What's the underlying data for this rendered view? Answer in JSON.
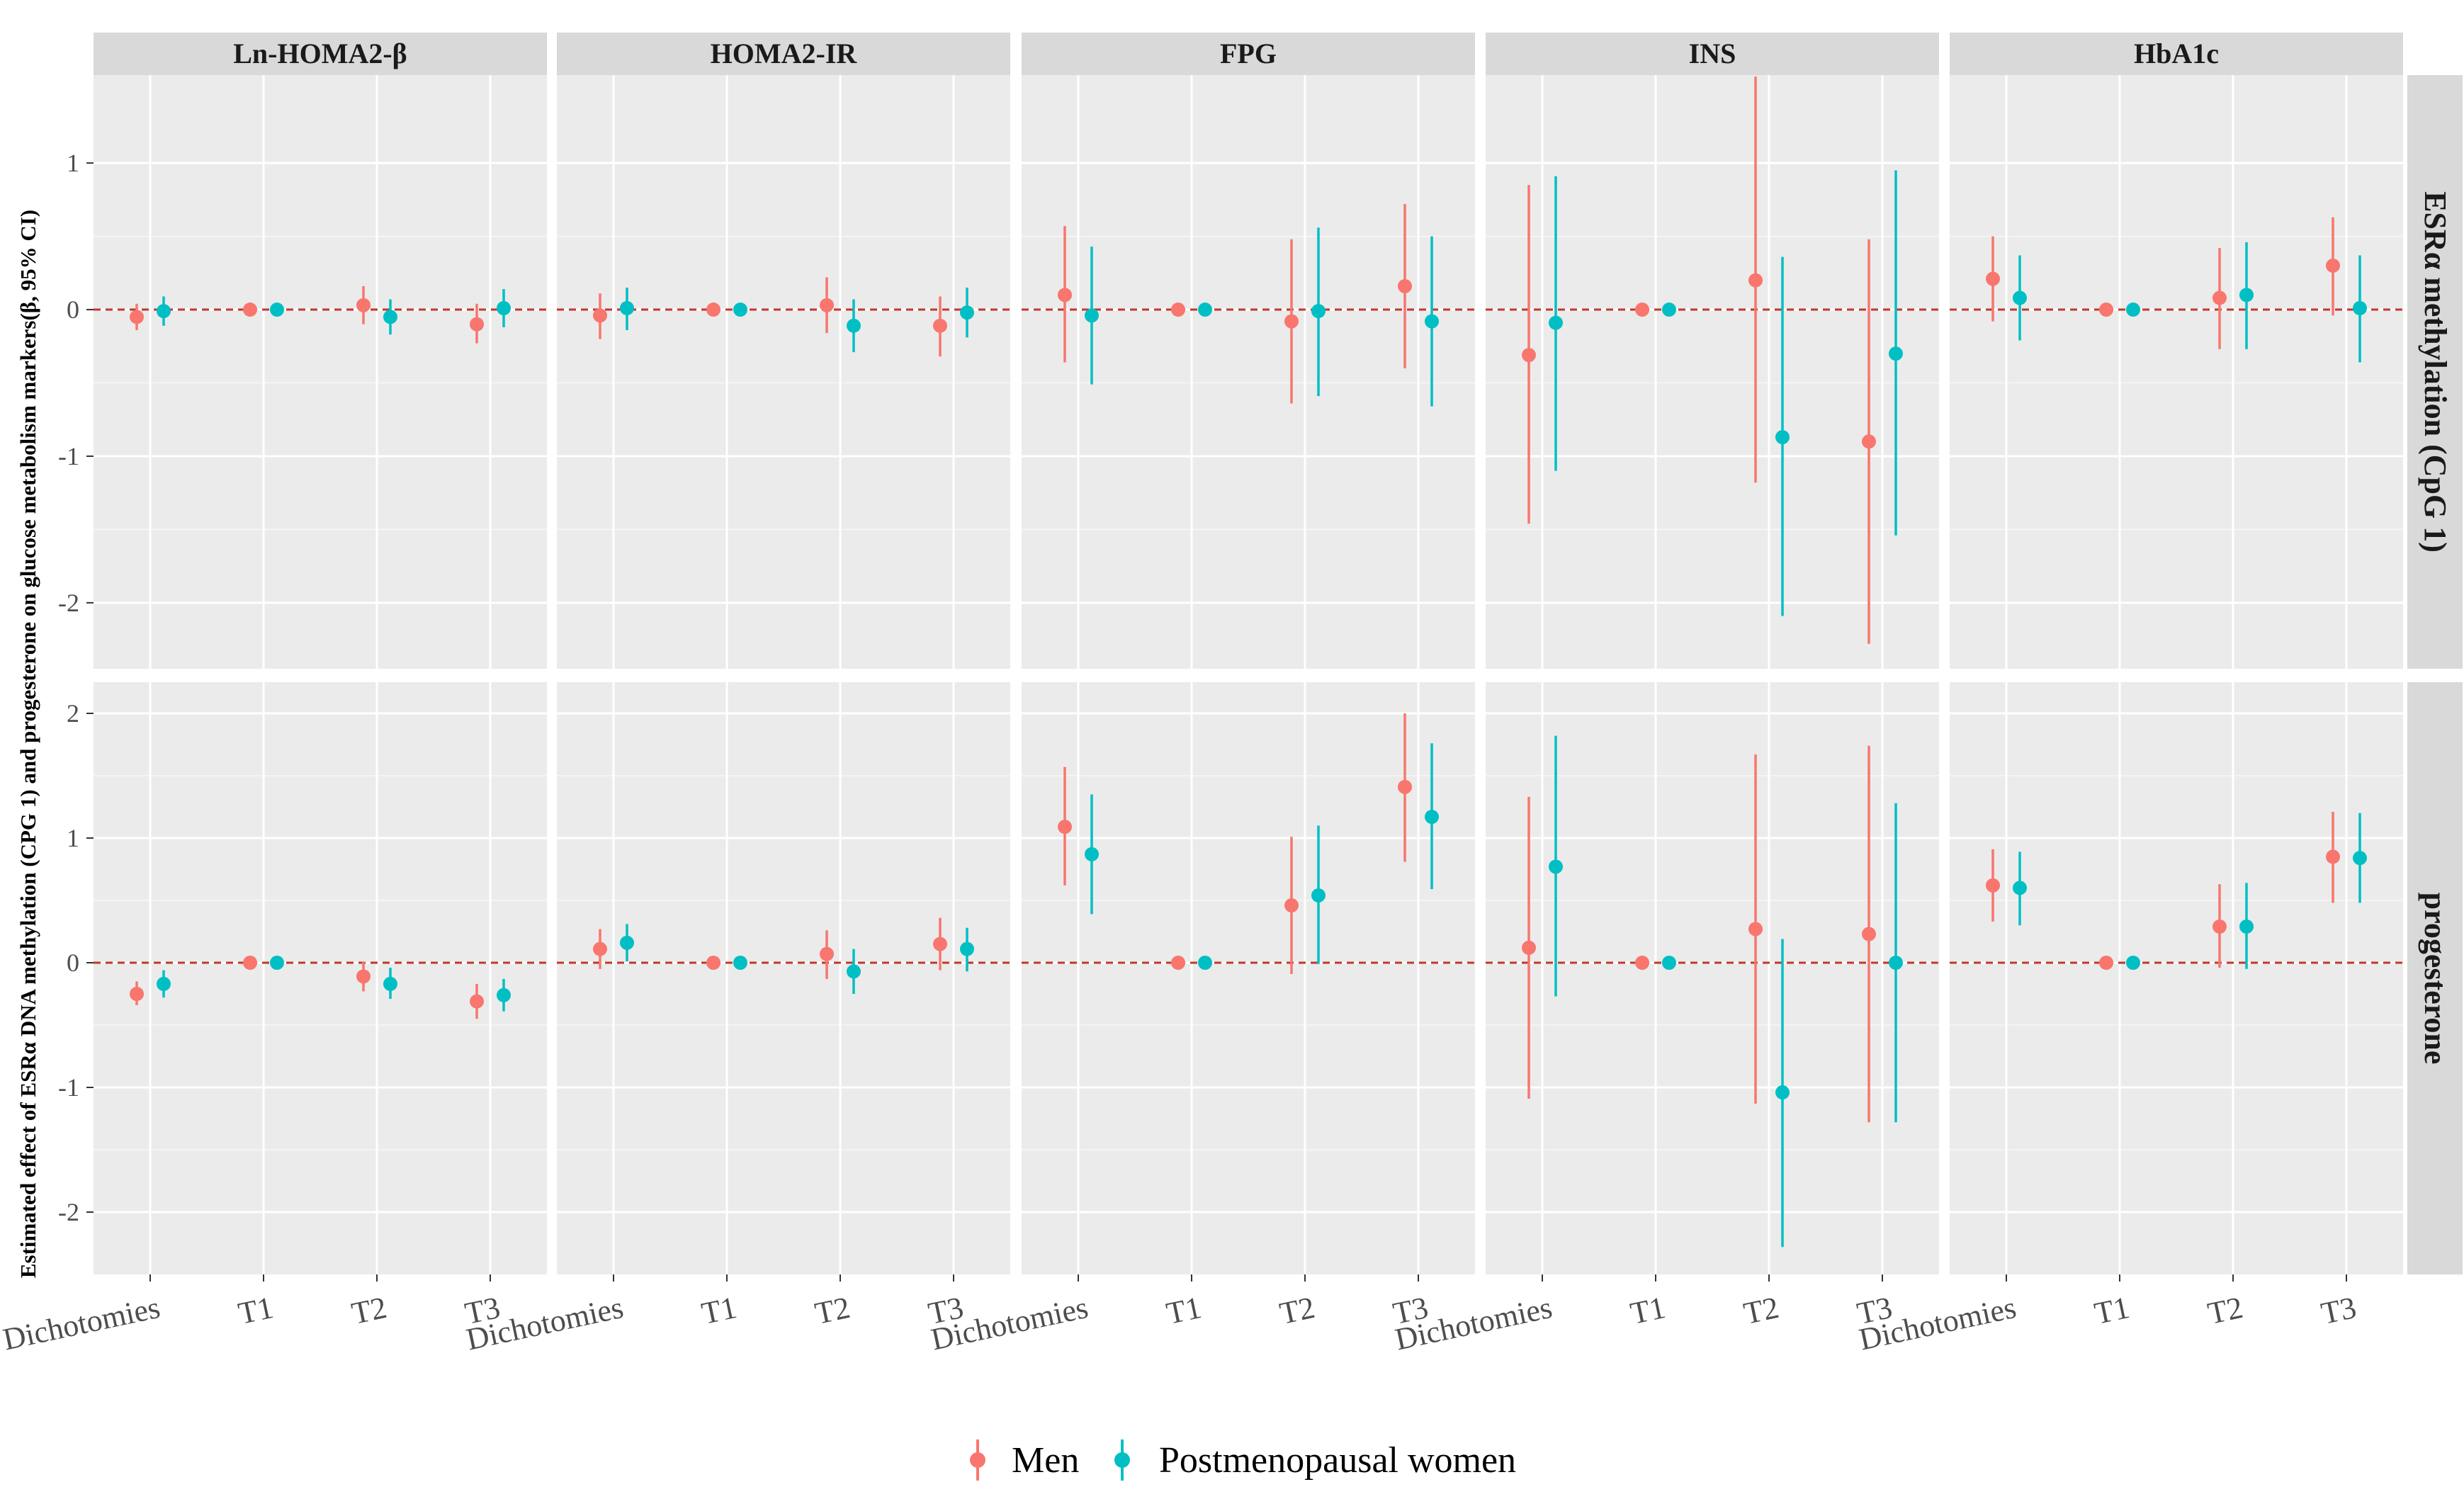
{
  "chart_data": {
    "type": "forest",
    "ylabel": "Estimated effect of ESRα DNA methylation (CPG 1) and progesterone on glucose metabolism markers(β, 95% CI)",
    "columns": [
      "Ln-HOMA2-β",
      "HOMA2-IR",
      "FPG",
      "INS",
      "HbA1c"
    ],
    "rows": [
      "ESRα methylation (CpG 1)",
      "progesterone"
    ],
    "categories": [
      "Dichotomies",
      "T1",
      "T2",
      "T3"
    ],
    "series_names": [
      "Men",
      "Postmenopausal women"
    ],
    "colors": {
      "Men": "#F8766D",
      "Postmenopausal women": "#00BFC4",
      "reference_line": "#C0392B"
    },
    "row_ranges": [
      {
        "ylim": [
          -2.45,
          1.6
        ],
        "yticks": [
          -2,
          -1,
          0,
          1
        ]
      },
      {
        "ylim": [
          -2.5,
          2.25
        ],
        "yticks": [
          -2,
          -1,
          0,
          1,
          2
        ]
      }
    ],
    "legend_position": "bottom",
    "panels": [
      {
        "row": 0,
        "col": 0,
        "series": [
          {
            "name": "Men",
            "points": [
              {
                "cat": "Dichotomies",
                "est": -0.05,
                "lo": -0.14,
                "hi": 0.04
              },
              {
                "cat": "T1",
                "est": 0.0,
                "lo": 0.0,
                "hi": 0.0
              },
              {
                "cat": "T2",
                "est": 0.03,
                "lo": -0.1,
                "hi": 0.16
              },
              {
                "cat": "T3",
                "est": -0.1,
                "lo": -0.23,
                "hi": 0.04
              }
            ]
          },
          {
            "name": "Postmenopausal women",
            "points": [
              {
                "cat": "Dichotomies",
                "est": -0.01,
                "lo": -0.11,
                "hi": 0.09
              },
              {
                "cat": "T1",
                "est": 0.0,
                "lo": 0.0,
                "hi": 0.0
              },
              {
                "cat": "T2",
                "est": -0.05,
                "lo": -0.17,
                "hi": 0.07
              },
              {
                "cat": "T3",
                "est": 0.01,
                "lo": -0.12,
                "hi": 0.14
              }
            ]
          }
        ]
      },
      {
        "row": 0,
        "col": 1,
        "series": [
          {
            "name": "Men",
            "points": [
              {
                "cat": "Dichotomies",
                "est": -0.04,
                "lo": -0.2,
                "hi": 0.11
              },
              {
                "cat": "T1",
                "est": 0.0,
                "lo": 0.0,
                "hi": 0.0
              },
              {
                "cat": "T2",
                "est": 0.03,
                "lo": -0.16,
                "hi": 0.22
              },
              {
                "cat": "T3",
                "est": -0.11,
                "lo": -0.32,
                "hi": 0.09
              }
            ]
          },
          {
            "name": "Postmenopausal women",
            "points": [
              {
                "cat": "Dichotomies",
                "est": 0.01,
                "lo": -0.14,
                "hi": 0.15
              },
              {
                "cat": "T1",
                "est": 0.0,
                "lo": 0.0,
                "hi": 0.0
              },
              {
                "cat": "T2",
                "est": -0.11,
                "lo": -0.29,
                "hi": 0.07
              },
              {
                "cat": "T3",
                "est": -0.02,
                "lo": -0.19,
                "hi": 0.15
              }
            ]
          }
        ]
      },
      {
        "row": 0,
        "col": 2,
        "series": [
          {
            "name": "Men",
            "points": [
              {
                "cat": "Dichotomies",
                "est": 0.1,
                "lo": -0.36,
                "hi": 0.57
              },
              {
                "cat": "T1",
                "est": 0.0,
                "lo": 0.0,
                "hi": 0.0
              },
              {
                "cat": "T2",
                "est": -0.08,
                "lo": -0.64,
                "hi": 0.48
              },
              {
                "cat": "T3",
                "est": 0.16,
                "lo": -0.4,
                "hi": 0.72
              }
            ]
          },
          {
            "name": "Postmenopausal women",
            "points": [
              {
                "cat": "Dichotomies",
                "est": -0.04,
                "lo": -0.51,
                "hi": 0.43
              },
              {
                "cat": "T1",
                "est": 0.0,
                "lo": 0.0,
                "hi": 0.0
              },
              {
                "cat": "T2",
                "est": -0.01,
                "lo": -0.59,
                "hi": 0.56
              },
              {
                "cat": "T3",
                "est": -0.08,
                "lo": -0.66,
                "hi": 0.5
              }
            ]
          }
        ]
      },
      {
        "row": 0,
        "col": 3,
        "series": [
          {
            "name": "Men",
            "points": [
              {
                "cat": "Dichotomies",
                "est": -0.31,
                "lo": -1.46,
                "hi": 0.85
              },
              {
                "cat": "T1",
                "est": 0.0,
                "lo": 0.0,
                "hi": 0.0
              },
              {
                "cat": "T2",
                "est": 0.2,
                "lo": -1.18,
                "hi": 1.59
              },
              {
                "cat": "T3",
                "est": -0.9,
                "lo": -2.28,
                "hi": 0.48
              }
            ]
          },
          {
            "name": "Postmenopausal women",
            "points": [
              {
                "cat": "Dichotomies",
                "est": -0.09,
                "lo": -1.1,
                "hi": 0.91
              },
              {
                "cat": "T1",
                "est": 0.0,
                "lo": 0.0,
                "hi": 0.0
              },
              {
                "cat": "T2",
                "est": -0.87,
                "lo": -2.09,
                "hi": 0.36
              },
              {
                "cat": "T3",
                "est": -0.3,
                "lo": -1.54,
                "hi": 0.95
              }
            ]
          }
        ]
      },
      {
        "row": 0,
        "col": 4,
        "series": [
          {
            "name": "Men",
            "points": [
              {
                "cat": "Dichotomies",
                "est": 0.21,
                "lo": -0.08,
                "hi": 0.5
              },
              {
                "cat": "T1",
                "est": 0.0,
                "lo": 0.0,
                "hi": 0.0
              },
              {
                "cat": "T2",
                "est": 0.08,
                "lo": -0.27,
                "hi": 0.42
              },
              {
                "cat": "T3",
                "est": 0.3,
                "lo": -0.04,
                "hi": 0.63
              }
            ]
          },
          {
            "name": "Postmenopausal women",
            "points": [
              {
                "cat": "Dichotomies",
                "est": 0.08,
                "lo": -0.21,
                "hi": 0.37
              },
              {
                "cat": "T1",
                "est": 0.0,
                "lo": 0.0,
                "hi": 0.0
              },
              {
                "cat": "T2",
                "est": 0.1,
                "lo": -0.27,
                "hi": 0.46
              },
              {
                "cat": "T3",
                "est": 0.01,
                "lo": -0.36,
                "hi": 0.37
              }
            ]
          }
        ]
      },
      {
        "row": 1,
        "col": 0,
        "series": [
          {
            "name": "Men",
            "points": [
              {
                "cat": "Dichotomies",
                "est": -0.25,
                "lo": -0.34,
                "hi": -0.15
              },
              {
                "cat": "T1",
                "est": 0.0,
                "lo": 0.0,
                "hi": 0.0
              },
              {
                "cat": "T2",
                "est": -0.11,
                "lo": -0.23,
                "hi": 0.01
              },
              {
                "cat": "T3",
                "est": -0.31,
                "lo": -0.45,
                "hi": -0.17
              }
            ]
          },
          {
            "name": "Postmenopausal women",
            "points": [
              {
                "cat": "Dichotomies",
                "est": -0.17,
                "lo": -0.28,
                "hi": -0.06
              },
              {
                "cat": "T1",
                "est": 0.0,
                "lo": 0.0,
                "hi": 0.0
              },
              {
                "cat": "T2",
                "est": -0.17,
                "lo": -0.29,
                "hi": -0.04
              },
              {
                "cat": "T3",
                "est": -0.26,
                "lo": -0.39,
                "hi": -0.13
              }
            ]
          }
        ]
      },
      {
        "row": 1,
        "col": 1,
        "series": [
          {
            "name": "Men",
            "points": [
              {
                "cat": "Dichotomies",
                "est": 0.11,
                "lo": -0.05,
                "hi": 0.27
              },
              {
                "cat": "T1",
                "est": 0.0,
                "lo": 0.0,
                "hi": 0.0
              },
              {
                "cat": "T2",
                "est": 0.07,
                "lo": -0.13,
                "hi": 0.26
              },
              {
                "cat": "T3",
                "est": 0.15,
                "lo": -0.06,
                "hi": 0.36
              }
            ]
          },
          {
            "name": "Postmenopausal women",
            "points": [
              {
                "cat": "Dichotomies",
                "est": 0.16,
                "lo": 0.01,
                "hi": 0.31
              },
              {
                "cat": "T1",
                "est": 0.0,
                "lo": 0.0,
                "hi": 0.0
              },
              {
                "cat": "T2",
                "est": -0.07,
                "lo": -0.25,
                "hi": 0.11
              },
              {
                "cat": "T3",
                "est": 0.11,
                "lo": -0.07,
                "hi": 0.28
              }
            ]
          }
        ]
      },
      {
        "row": 1,
        "col": 2,
        "series": [
          {
            "name": "Men",
            "points": [
              {
                "cat": "Dichotomies",
                "est": 1.09,
                "lo": 0.62,
                "hi": 1.57
              },
              {
                "cat": "T1",
                "est": 0.0,
                "lo": 0.0,
                "hi": 0.0
              },
              {
                "cat": "T2",
                "est": 0.46,
                "lo": -0.09,
                "hi": 1.01
              },
              {
                "cat": "T3",
                "est": 1.41,
                "lo": 0.81,
                "hi": 2.0
              }
            ]
          },
          {
            "name": "Postmenopausal women",
            "points": [
              {
                "cat": "Dichotomies",
                "est": 0.87,
                "lo": 0.39,
                "hi": 1.35
              },
              {
                "cat": "T1",
                "est": 0.0,
                "lo": 0.0,
                "hi": 0.0
              },
              {
                "cat": "T2",
                "est": 0.54,
                "lo": -0.01,
                "hi": 1.1
              },
              {
                "cat": "T3",
                "est": 1.17,
                "lo": 0.59,
                "hi": 1.76
              }
            ]
          }
        ]
      },
      {
        "row": 1,
        "col": 3,
        "series": [
          {
            "name": "Men",
            "points": [
              {
                "cat": "Dichotomies",
                "est": 0.12,
                "lo": -1.09,
                "hi": 1.33
              },
              {
                "cat": "T1",
                "est": 0.0,
                "lo": 0.0,
                "hi": 0.0
              },
              {
                "cat": "T2",
                "est": 0.27,
                "lo": -1.13,
                "hi": 1.67
              },
              {
                "cat": "T3",
                "est": 0.23,
                "lo": -1.28,
                "hi": 1.74
              }
            ]
          },
          {
            "name": "Postmenopausal women",
            "points": [
              {
                "cat": "Dichotomies",
                "est": 0.77,
                "lo": -0.27,
                "hi": 1.82
              },
              {
                "cat": "T1",
                "est": 0.0,
                "lo": 0.0,
                "hi": 0.0
              },
              {
                "cat": "T2",
                "est": -1.04,
                "lo": -2.28,
                "hi": 0.19
              },
              {
                "cat": "T3",
                "est": 0.0,
                "lo": -1.28,
                "hi": 1.28
              }
            ]
          }
        ]
      },
      {
        "row": 1,
        "col": 4,
        "series": [
          {
            "name": "Men",
            "points": [
              {
                "cat": "Dichotomies",
                "est": 0.62,
                "lo": 0.33,
                "hi": 0.91
              },
              {
                "cat": "T1",
                "est": 0.0,
                "lo": 0.0,
                "hi": 0.0
              },
              {
                "cat": "T2",
                "est": 0.29,
                "lo": -0.04,
                "hi": 0.63
              },
              {
                "cat": "T3",
                "est": 0.85,
                "lo": 0.48,
                "hi": 1.21
              }
            ]
          },
          {
            "name": "Postmenopausal women",
            "points": [
              {
                "cat": "Dichotomies",
                "est": 0.6,
                "lo": 0.3,
                "hi": 0.89
              },
              {
                "cat": "T1",
                "est": 0.0,
                "lo": 0.0,
                "hi": 0.0
              },
              {
                "cat": "T2",
                "est": 0.29,
                "lo": -0.05,
                "hi": 0.64
              },
              {
                "cat": "T3",
                "est": 0.84,
                "lo": 0.48,
                "hi": 1.2
              }
            ]
          }
        ]
      }
    ]
  }
}
